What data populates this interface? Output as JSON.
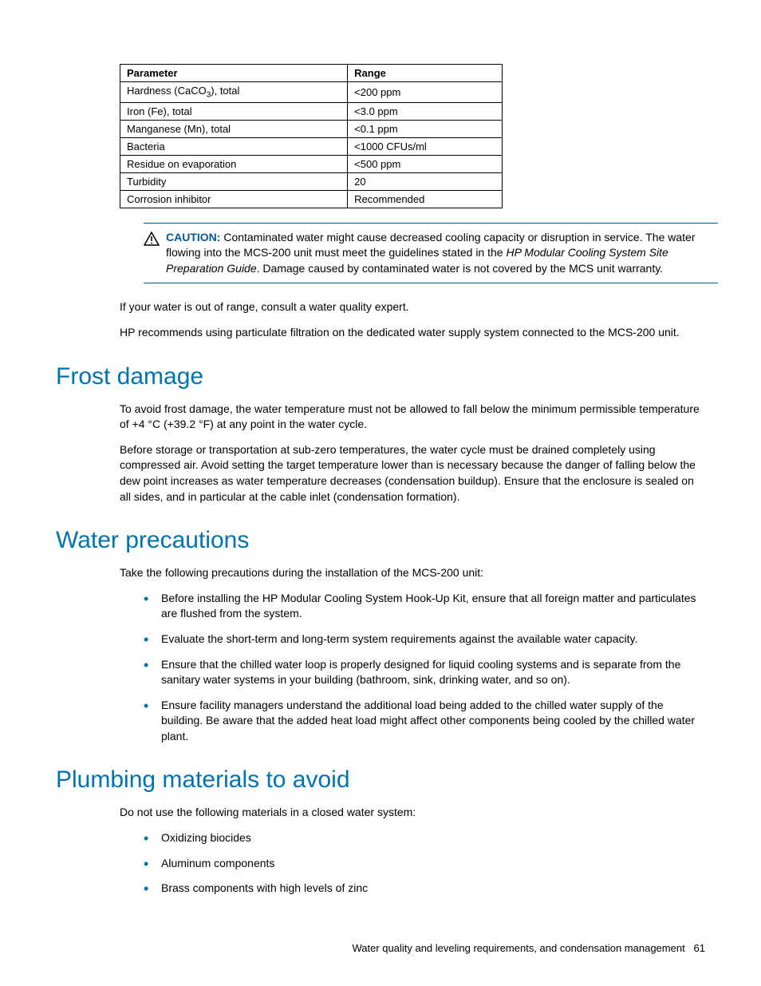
{
  "table": {
    "headers": [
      "Parameter",
      "Range"
    ],
    "rows": [
      {
        "param_pre": "Hardness (CaCO",
        "param_sub": "3",
        "param_post": "), total",
        "range": "<200 ppm"
      },
      {
        "param_pre": "Iron (Fe), total",
        "param_sub": "",
        "param_post": "",
        "range": "<3.0 ppm"
      },
      {
        "param_pre": "Manganese (Mn), total",
        "param_sub": "",
        "param_post": "",
        "range": "<0.1 ppm"
      },
      {
        "param_pre": "Bacteria",
        "param_sub": "",
        "param_post": "",
        "range": "<1000 CFUs/ml"
      },
      {
        "param_pre": "Residue on evaporation",
        "param_sub": "",
        "param_post": "",
        "range": "<500 ppm"
      },
      {
        "param_pre": "Turbidity",
        "param_sub": "",
        "param_post": "",
        "range": "20"
      },
      {
        "param_pre": "Corrosion inhibitor",
        "param_sub": "",
        "param_post": "",
        "range": "Recommended"
      }
    ]
  },
  "caution": {
    "label": "CAUTION:",
    "text_pre": " Contaminated water might cause decreased cooling capacity or disruption in service. The water flowing into the MCS-200 unit must meet the guidelines stated in the ",
    "italic": "HP Modular Cooling System Site Preparation Guide",
    "text_post": ". Damage caused by contaminated water is not covered by the MCS unit warranty."
  },
  "paras": {
    "p1": "If your water is out of range, consult a water quality expert.",
    "p2": "HP recommends using particulate filtration on the dedicated water supply system connected to the MCS-200 unit."
  },
  "frost": {
    "heading": "Frost damage",
    "p1": "To avoid frost damage, the water temperature must not be allowed to fall below the minimum permissible temperature of +4 °C (+39.2 °F) at any point in the water cycle.",
    "p2": "Before storage or transportation at sub-zero temperatures, the water cycle must be drained completely using compressed air. Avoid setting the target temperature lower than is necessary because the danger of falling below the dew point increases as water temperature decreases (condensation buildup). Ensure that the enclosure is sealed on all sides, and in particular at the cable inlet (condensation formation)."
  },
  "water": {
    "heading": "Water precautions",
    "intro": "Take the following precautions during the installation of the MCS-200 unit:",
    "items": [
      "Before installing the HP Modular Cooling System Hook-Up Kit, ensure that all foreign matter and particulates are flushed from the system.",
      "Evaluate the short-term and long-term system requirements against the available water capacity.",
      "Ensure that the chilled water loop is properly designed for liquid cooling systems and is separate from the sanitary water systems in your building (bathroom, sink, drinking water, and so on).",
      "Ensure facility managers understand the additional load being added to the chilled water supply of the building. Be aware that the added heat load might affect other components being cooled by the chilled water plant."
    ]
  },
  "plumbing": {
    "heading": "Plumbing materials to avoid",
    "intro": "Do not use the following materials in a closed water system:",
    "items": [
      "Oxidizing biocides",
      "Aluminum components",
      "Brass components with high levels of zinc"
    ]
  },
  "footer": {
    "text": "Water quality and leveling requirements, and condensation management",
    "page": "61"
  },
  "colors": {
    "heading": "#0073b1",
    "bullet": "#0073b1",
    "caution_border": "#005a9c",
    "caution_label": "#005a9c"
  }
}
